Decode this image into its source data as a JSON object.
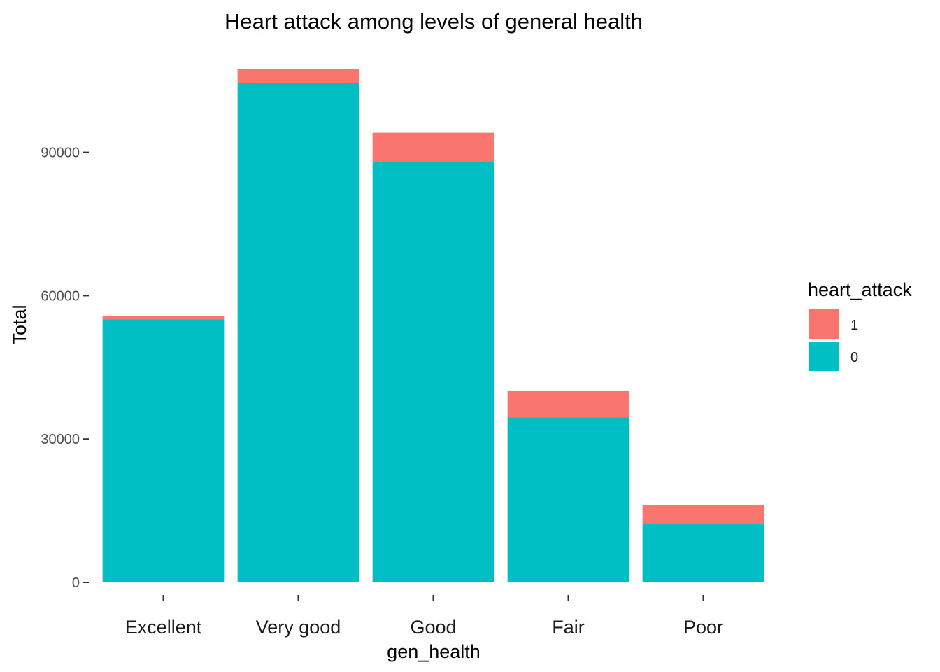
{
  "chart_data": {
    "type": "bar",
    "stacked": true,
    "title": "Heart attack among levels of general health",
    "xlabel": "gen_health",
    "ylabel": "Total",
    "categories": [
      "Excellent",
      "Very good",
      "Good",
      "Fair",
      "Poor"
    ],
    "ylim": [
      0,
      110000
    ],
    "yticks": [
      0,
      30000,
      60000,
      90000
    ],
    "grid": false,
    "legend": {
      "title": "heart_attack",
      "position": "right",
      "entries": [
        "1",
        "0"
      ]
    },
    "series": [
      {
        "name": "0",
        "color": "#00BFC4",
        "values": [
          55000,
          104500,
          88100,
          34500,
          12300
        ]
      },
      {
        "name": "1",
        "color": "#F8766D",
        "values": [
          700,
          3000,
          6000,
          5600,
          3900
        ]
      }
    ]
  }
}
